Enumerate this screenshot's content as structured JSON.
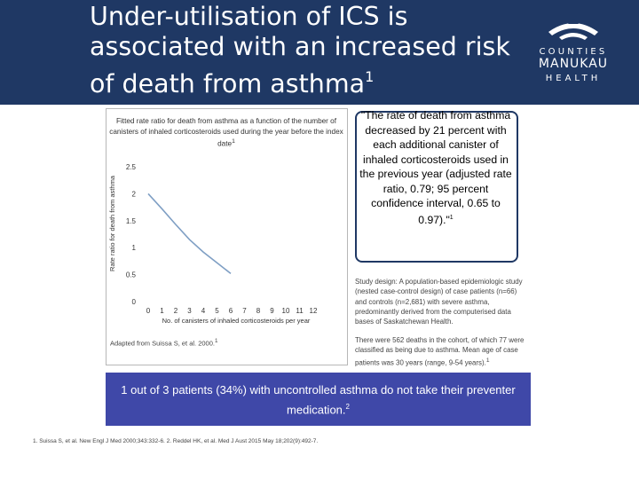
{
  "slide": {
    "title_main": "Under-utilisation of ICS is associated with an increased risk of death from asthma",
    "title_sup": "1"
  },
  "logo": {
    "line1": "COUNTIES",
    "line2": "MANUKAU",
    "line3": "HEALTH"
  },
  "chart_data": {
    "type": "line",
    "title": "Fitted rate ratio for death from asthma as a function of the number of canisters of inhaled corticosteroids used during the year before the index date",
    "title_sup": "1",
    "xlabel": "No. of canisters of inhaled corticosteroids per year",
    "ylabel": "Rate ratio for death from asthma",
    "x_ticks": [
      "0",
      "1",
      "2",
      "3",
      "4",
      "5",
      "6",
      "7",
      "8",
      "9",
      "10",
      "11",
      "12"
    ],
    "y_ticks": [
      "0",
      "0.5",
      "1",
      "1.5",
      "2",
      "2.5"
    ],
    "xlim": [
      0,
      12
    ],
    "ylim": [
      0,
      2.5
    ],
    "grid": false,
    "series": [
      {
        "x": [
          0,
          1,
          2,
          3,
          4,
          5,
          6
        ],
        "y": [
          2.0,
          1.72,
          1.43,
          1.15,
          0.92,
          0.72,
          0.52
        ]
      }
    ],
    "source": "Adapted from Suissa S, et al. 2000.",
    "source_sup": "1"
  },
  "quote": {
    "text": "\"The rate of death from asthma decreased by 21 percent with each additional canister of inhaled corticosteroids used in the previous year (adjusted rate ratio, 0.79; 95 percent confidence interval, 0.65 to 0.97).\"",
    "sup": "1"
  },
  "study": {
    "text": "Study design: A population-based epidemiologic study (nested case-control design) of case patients (n=66) and controls (n=2,681) with severe asthma, predominantly derived from the computerised data bases of Saskatchewan Health.",
    "deaths": "There were 562 deaths in the cohort, of which 77 were classified as being due to asthma. Mean age of case patients was 30 years (range, 9-54 years).",
    "deaths_sup": "1"
  },
  "banner": {
    "text": "1 out of 3 patients (34%) with uncontrolled asthma do not take their preventer medication.",
    "sup": "2"
  },
  "references": "1. Suissa S, et al. New Engl J Med 2000;343:332-6. 2. Reddel HK, et al. Med J Aust 2015 May 18;202(9):492-7.",
  "colors": {
    "header_bg": "#1f3864",
    "banner_bg": "#3f48a8",
    "curve": "#7f9fc4"
  }
}
